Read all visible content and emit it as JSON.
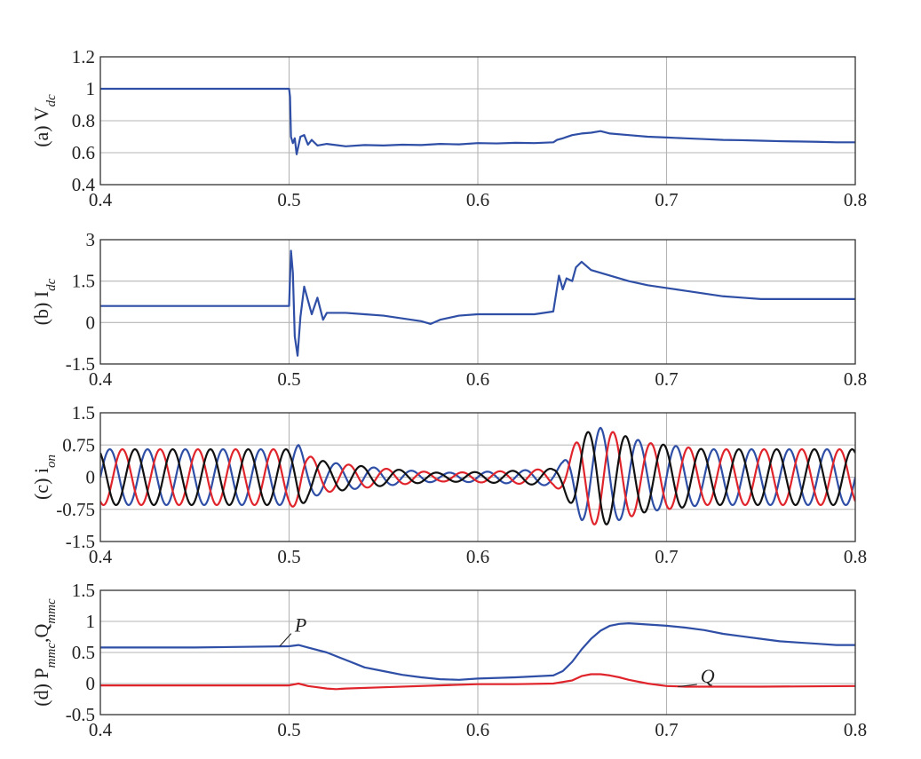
{
  "colors": {
    "blue": "#2f4fa6",
    "red": "#e0242b",
    "black": "#111111",
    "grid": "#b4b4b4"
  },
  "chart_data": [
    {
      "type": "line",
      "ylabel": "(a) V",
      "ylabel_sub": "dc",
      "xlim": [
        0.4,
        0.8
      ],
      "ylim": [
        0.4,
        1.2
      ],
      "xticks": [
        0.4,
        0.5,
        0.6,
        0.7,
        0.8
      ],
      "xtick_labels": [
        "0.4",
        "0.5",
        "0.6",
        "0.7",
        "0.8"
      ],
      "yticks": [
        0.4,
        0.6,
        0.8,
        1.0,
        1.2
      ],
      "ytick_labels": [
        "0.4",
        "0.6",
        "0.8",
        "1",
        "1.2"
      ],
      "grid": true,
      "series": [
        {
          "color": "blue",
          "x": [
            0.4,
            0.5,
            0.5005,
            0.501,
            0.502,
            0.503,
            0.504,
            0.506,
            0.508,
            0.51,
            0.512,
            0.515,
            0.52,
            0.53,
            0.54,
            0.55,
            0.56,
            0.57,
            0.58,
            0.59,
            0.6,
            0.61,
            0.62,
            0.63,
            0.64,
            0.642,
            0.645,
            0.65,
            0.655,
            0.66,
            0.665,
            0.67,
            0.68,
            0.69,
            0.7,
            0.71,
            0.72,
            0.73,
            0.74,
            0.75,
            0.76,
            0.77,
            0.78,
            0.79,
            0.8
          ],
          "y": [
            1.0,
            1.0,
            0.95,
            0.7,
            0.66,
            0.69,
            0.59,
            0.7,
            0.71,
            0.65,
            0.68,
            0.645,
            0.655,
            0.64,
            0.648,
            0.645,
            0.65,
            0.648,
            0.655,
            0.652,
            0.66,
            0.658,
            0.662,
            0.66,
            0.665,
            0.68,
            0.69,
            0.71,
            0.72,
            0.725,
            0.735,
            0.72,
            0.71,
            0.7,
            0.695,
            0.69,
            0.685,
            0.68,
            0.678,
            0.675,
            0.672,
            0.67,
            0.668,
            0.665,
            0.665
          ]
        }
      ]
    },
    {
      "type": "line",
      "ylabel": "(b) I",
      "ylabel_sub": "dc",
      "xlim": [
        0.4,
        0.8
      ],
      "ylim": [
        -1.5,
        3
      ],
      "xticks": [
        0.4,
        0.5,
        0.6,
        0.7,
        0.8
      ],
      "xtick_labels": [
        "0.4",
        "0.5",
        "0.6",
        "0.7",
        "0.8"
      ],
      "yticks": [
        -1.5,
        0,
        1.5,
        3
      ],
      "ytick_labels": [
        "-1.5",
        "0",
        "1.5",
        "3"
      ],
      "grid": true,
      "series": [
        {
          "color": "blue",
          "x": [
            0.4,
            0.5,
            0.501,
            0.502,
            0.503,
            0.5045,
            0.506,
            0.508,
            0.51,
            0.512,
            0.515,
            0.518,
            0.52,
            0.53,
            0.54,
            0.55,
            0.56,
            0.57,
            0.575,
            0.58,
            0.59,
            0.6,
            0.61,
            0.62,
            0.63,
            0.64,
            0.643,
            0.645,
            0.647,
            0.65,
            0.652,
            0.655,
            0.66,
            0.665,
            0.67,
            0.68,
            0.69,
            0.7,
            0.71,
            0.72,
            0.73,
            0.74,
            0.75,
            0.76,
            0.77,
            0.78,
            0.79,
            0.8
          ],
          "y": [
            0.6,
            0.6,
            2.6,
            1.8,
            -0.5,
            -1.2,
            0.2,
            1.3,
            0.8,
            0.3,
            0.9,
            0.1,
            0.35,
            0.35,
            0.3,
            0.25,
            0.15,
            0.05,
            -0.05,
            0.1,
            0.25,
            0.3,
            0.3,
            0.3,
            0.3,
            0.4,
            1.7,
            1.2,
            1.6,
            1.5,
            2.0,
            2.2,
            1.9,
            1.8,
            1.7,
            1.5,
            1.35,
            1.25,
            1.15,
            1.05,
            0.95,
            0.9,
            0.85,
            0.85,
            0.85,
            0.85,
            0.85,
            0.85
          ]
        }
      ]
    },
    {
      "type": "line",
      "ylabel": "(c) i",
      "ylabel_sub": "on",
      "xlim": [
        0.4,
        0.8
      ],
      "ylim": [
        -1.5,
        1.5
      ],
      "xticks": [
        0.4,
        0.5,
        0.6,
        0.7,
        0.8
      ],
      "xtick_labels": [
        "0.4",
        "0.5",
        "0.6",
        "0.7",
        "0.8"
      ],
      "yticks": [
        -1.5,
        -0.75,
        0,
        0.75,
        1.5
      ],
      "ytick_labels": [
        "-1.5",
        "-0.75",
        "0",
        "0.75",
        "1.5"
      ],
      "grid": true,
      "frequency_hz": 50,
      "envelope": {
        "x": [
          0.4,
          0.5,
          0.505,
          0.51,
          0.52,
          0.55,
          0.58,
          0.6,
          0.62,
          0.64,
          0.645,
          0.655,
          0.665,
          0.675,
          0.69,
          0.72,
          0.8
        ],
        "y": [
          0.65,
          0.65,
          0.75,
          0.5,
          0.35,
          0.2,
          0.1,
          0.12,
          0.15,
          0.2,
          0.35,
          1.0,
          1.15,
          1.0,
          0.8,
          0.65,
          0.65
        ]
      },
      "series": [
        {
          "color": "blue",
          "phase_deg": 0
        },
        {
          "color": "red",
          "phase_deg": -120
        },
        {
          "color": "black",
          "phase_deg": 120
        }
      ]
    },
    {
      "type": "line",
      "ylabel": "(d) P",
      "ylabel_sub": "mmc",
      "ylabel2": ",Q",
      "ylabel2_sub": "mmc",
      "xlim": [
        0.4,
        0.8
      ],
      "ylim": [
        -0.5,
        1.5
      ],
      "xticks": [
        0.4,
        0.5,
        0.6,
        0.7,
        0.8
      ],
      "xtick_labels": [
        "0.4",
        "0.5",
        "0.6",
        "0.7",
        "0.8"
      ],
      "yticks": [
        -0.5,
        0,
        0.5,
        1,
        1.5
      ],
      "ytick_labels": [
        "-0.5",
        "0",
        "0.5",
        "1",
        "1.5"
      ],
      "grid": true,
      "annotations": [
        {
          "text": "P",
          "x": 0.495,
          "y": 0.6,
          "text_x": 0.503,
          "text_y": 0.92
        },
        {
          "text": "Q",
          "x": 0.706,
          "y": -0.05,
          "text_x": 0.718,
          "text_y": 0.1
        }
      ],
      "series": [
        {
          "name": "P",
          "color": "blue",
          "x": [
            0.4,
            0.45,
            0.5,
            0.505,
            0.51,
            0.52,
            0.53,
            0.54,
            0.55,
            0.56,
            0.57,
            0.58,
            0.59,
            0.6,
            0.62,
            0.64,
            0.645,
            0.65,
            0.655,
            0.66,
            0.665,
            0.67,
            0.675,
            0.68,
            0.69,
            0.7,
            0.71,
            0.72,
            0.73,
            0.74,
            0.75,
            0.76,
            0.77,
            0.78,
            0.79,
            0.8
          ],
          "y": [
            0.58,
            0.58,
            0.6,
            0.62,
            0.58,
            0.5,
            0.38,
            0.26,
            0.2,
            0.14,
            0.1,
            0.07,
            0.06,
            0.08,
            0.1,
            0.13,
            0.2,
            0.35,
            0.55,
            0.72,
            0.85,
            0.93,
            0.96,
            0.97,
            0.95,
            0.93,
            0.9,
            0.86,
            0.8,
            0.76,
            0.72,
            0.68,
            0.66,
            0.64,
            0.62,
            0.62
          ]
        },
        {
          "name": "Q",
          "color": "red",
          "x": [
            0.4,
            0.5,
            0.505,
            0.51,
            0.515,
            0.52,
            0.525,
            0.53,
            0.55,
            0.6,
            0.62,
            0.64,
            0.65,
            0.655,
            0.66,
            0.665,
            0.67,
            0.675,
            0.68,
            0.69,
            0.7,
            0.71,
            0.72,
            0.75,
            0.8
          ],
          "y": [
            -0.03,
            -0.03,
            0.0,
            -0.04,
            -0.06,
            -0.08,
            -0.09,
            -0.08,
            -0.06,
            -0.01,
            -0.01,
            0.0,
            0.05,
            0.12,
            0.15,
            0.15,
            0.13,
            0.1,
            0.06,
            0.0,
            -0.04,
            -0.05,
            -0.05,
            -0.05,
            -0.04
          ]
        }
      ]
    }
  ]
}
